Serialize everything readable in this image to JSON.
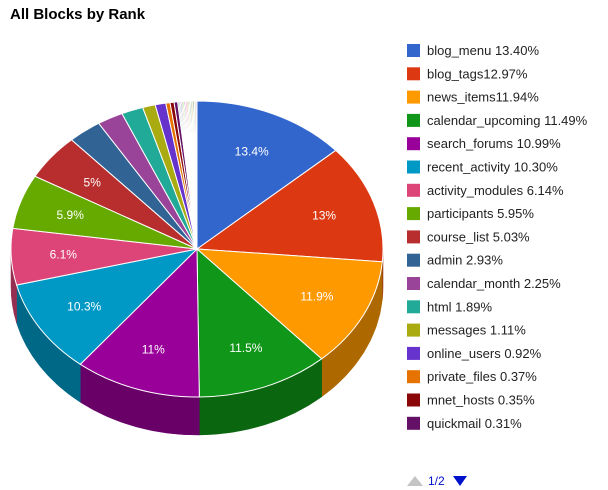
{
  "chart_data": {
    "type": "pie",
    "title": "All Blocks by Rank",
    "series": [
      {
        "name": "blog_menu",
        "legend": "blog_menu 13.40%",
        "value": 13.4,
        "label": "13.4%",
        "color": "#3366cc"
      },
      {
        "name": "blog_tags",
        "legend": "blog_tags12.97%",
        "value": 12.97,
        "label": "13%",
        "color": "#dc3912"
      },
      {
        "name": "news_items",
        "legend": "news_items11.94%",
        "value": 11.94,
        "label": "11.9%",
        "color": "#ff9900"
      },
      {
        "name": "calendar_upcoming",
        "legend": "calendar_upcoming 11.49%",
        "value": 11.49,
        "label": "11.5%",
        "color": "#109618"
      },
      {
        "name": "search_forums",
        "legend": "search_forums 10.99%",
        "value": 10.99,
        "label": "11%",
        "color": "#990099"
      },
      {
        "name": "recent_activity",
        "legend": "recent_activity 10.30%",
        "value": 10.3,
        "label": "10.3%",
        "color": "#0099c6"
      },
      {
        "name": "activity_modules",
        "legend": "activity_modules 6.14%",
        "value": 6.14,
        "label": "6.1%",
        "color": "#dd4477"
      },
      {
        "name": "participants",
        "legend": "participants 5.95%",
        "value": 5.95,
        "label": "5.9%",
        "color": "#66aa00"
      },
      {
        "name": "course_list",
        "legend": "course_list 5.03%",
        "value": 5.03,
        "label": "5%",
        "color": "#b82e2e"
      },
      {
        "name": "admin",
        "legend": "admin 2.93%",
        "value": 2.93,
        "label": "",
        "color": "#316395"
      },
      {
        "name": "calendar_month",
        "legend": "calendar_month 2.25%",
        "value": 2.25,
        "label": "",
        "color": "#994499"
      },
      {
        "name": "html",
        "legend": "html 1.89%",
        "value": 1.89,
        "label": "",
        "color": "#22aa99"
      },
      {
        "name": "messages",
        "legend": "messages 1.11%",
        "value": 1.11,
        "label": "",
        "color": "#aaaa11"
      },
      {
        "name": "online_users",
        "legend": "online_users 0.92%",
        "value": 0.92,
        "label": "",
        "color": "#6633cc"
      },
      {
        "name": "private_files",
        "legend": "private_files 0.37%",
        "value": 0.37,
        "label": "",
        "color": "#e67300"
      },
      {
        "name": "mnet_hosts",
        "legend": "mnet_hosts 0.35%",
        "value": 0.35,
        "label": "",
        "color": "#8b0707"
      },
      {
        "name": "quickmail",
        "legend": "quickmail 0.31%",
        "value": 0.31,
        "label": "",
        "color": "#651067"
      }
    ],
    "remaining_slice_colors": [
      "#329262",
      "#5574a6",
      "#3b3eac",
      "#b77322",
      "#16d620",
      "#b91383",
      "#f4359e",
      "#9c5935",
      "#a9c413",
      "#2a778d",
      "#668d1c",
      "#bea413",
      "#0c5922",
      "#743411",
      "#cccccc"
    ],
    "pie_style": "3d",
    "legend_position": "right"
  },
  "pager": {
    "text": "1/2",
    "prev_icon": "triangle-up-icon",
    "next_icon": "triangle-down-icon"
  }
}
